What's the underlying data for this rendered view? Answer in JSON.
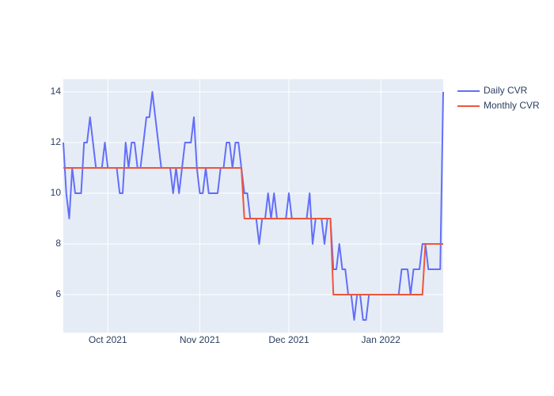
{
  "chart_data": {
    "type": "line",
    "categories": [
      null,
      null,
      null,
      null,
      null,
      null,
      null,
      null,
      null,
      null,
      null,
      null,
      null,
      null,
      null,
      "Oct 2021",
      null,
      null,
      null,
      null,
      null,
      null,
      null,
      null,
      null,
      null,
      null,
      null,
      null,
      null,
      null,
      null,
      null,
      null,
      null,
      null,
      null,
      null,
      null,
      null,
      null,
      null,
      null,
      null,
      null,
      null,
      "Nov 2021",
      null,
      null,
      null,
      null,
      null,
      null,
      null,
      null,
      null,
      null,
      null,
      null,
      null,
      null,
      null,
      null,
      null,
      null,
      null,
      null,
      null,
      null,
      null,
      null,
      null,
      null,
      null,
      null,
      null,
      "Dec 2021",
      null,
      null,
      null,
      null,
      null,
      null,
      null,
      null,
      null,
      null,
      null,
      null,
      null,
      null,
      null,
      null,
      null,
      null,
      null,
      null,
      null,
      null,
      null,
      null,
      null,
      null,
      null,
      null,
      null,
      null,
      "Jan 2022",
      null,
      null,
      null,
      null,
      null,
      null,
      null,
      null,
      null,
      null,
      null,
      null,
      null,
      null,
      null,
      null,
      null,
      null,
      null,
      null,
      null
    ],
    "series": [
      {
        "name": "Daily CVR",
        "color": "#636efa",
        "values": [
          12,
          10,
          9,
          11,
          10,
          10,
          10,
          12,
          12,
          13,
          12,
          11,
          11,
          11,
          12,
          11,
          11,
          11,
          11,
          10,
          10,
          12,
          11,
          12,
          12,
          11,
          11,
          12,
          13,
          13,
          14,
          13,
          12,
          11,
          11,
          11,
          11,
          10,
          11,
          10,
          11,
          12,
          12,
          12,
          13,
          11,
          10,
          10,
          11,
          10,
          10,
          10,
          10,
          11,
          11,
          12,
          12,
          11,
          12,
          12,
          11,
          10,
          10,
          9,
          9,
          9,
          8,
          9,
          9,
          10,
          9,
          10,
          9,
          9,
          9,
          9,
          10,
          9,
          9,
          9,
          9,
          9,
          9,
          10,
          8,
          9,
          9,
          9,
          8,
          9,
          9,
          7,
          7,
          8,
          7,
          7,
          6,
          6,
          5,
          6,
          6,
          5,
          5,
          6,
          6,
          6,
          6,
          6,
          6,
          6,
          6,
          6,
          6,
          6,
          7,
          7,
          7,
          6,
          7,
          7,
          7,
          8,
          8,
          7,
          7,
          7,
          7,
          7,
          14
        ]
      },
      {
        "name": "Monthly CVR",
        "color": "#ef553b",
        "values": [
          11,
          11,
          11,
          11,
          11,
          11,
          11,
          11,
          11,
          11,
          11,
          11,
          11,
          11,
          11,
          11,
          11,
          11,
          11,
          11,
          11,
          11,
          11,
          11,
          11,
          11,
          11,
          11,
          11,
          11,
          11,
          11,
          11,
          11,
          11,
          11,
          11,
          11,
          11,
          11,
          11,
          11,
          11,
          11,
          11,
          11,
          11,
          11,
          11,
          11,
          11,
          11,
          11,
          11,
          11,
          11,
          11,
          11,
          11,
          11,
          11,
          9,
          9,
          9,
          9,
          9,
          9,
          9,
          9,
          9,
          9,
          9,
          9,
          9,
          9,
          9,
          9,
          9,
          9,
          9,
          9,
          9,
          9,
          9,
          9,
          9,
          9,
          9,
          9,
          9,
          9,
          6,
          6,
          6,
          6,
          6,
          6,
          6,
          6,
          6,
          6,
          6,
          6,
          6,
          6,
          6,
          6,
          6,
          6,
          6,
          6,
          6,
          6,
          6,
          6,
          6,
          6,
          6,
          6,
          6,
          6,
          6,
          8,
          8,
          8,
          8,
          8,
          8,
          8
        ]
      }
    ],
    "ylim": [
      4.5,
      14.5
    ],
    "yticks": [
      6,
      8,
      10,
      12,
      14
    ],
    "grid": true,
    "legend": "right"
  }
}
